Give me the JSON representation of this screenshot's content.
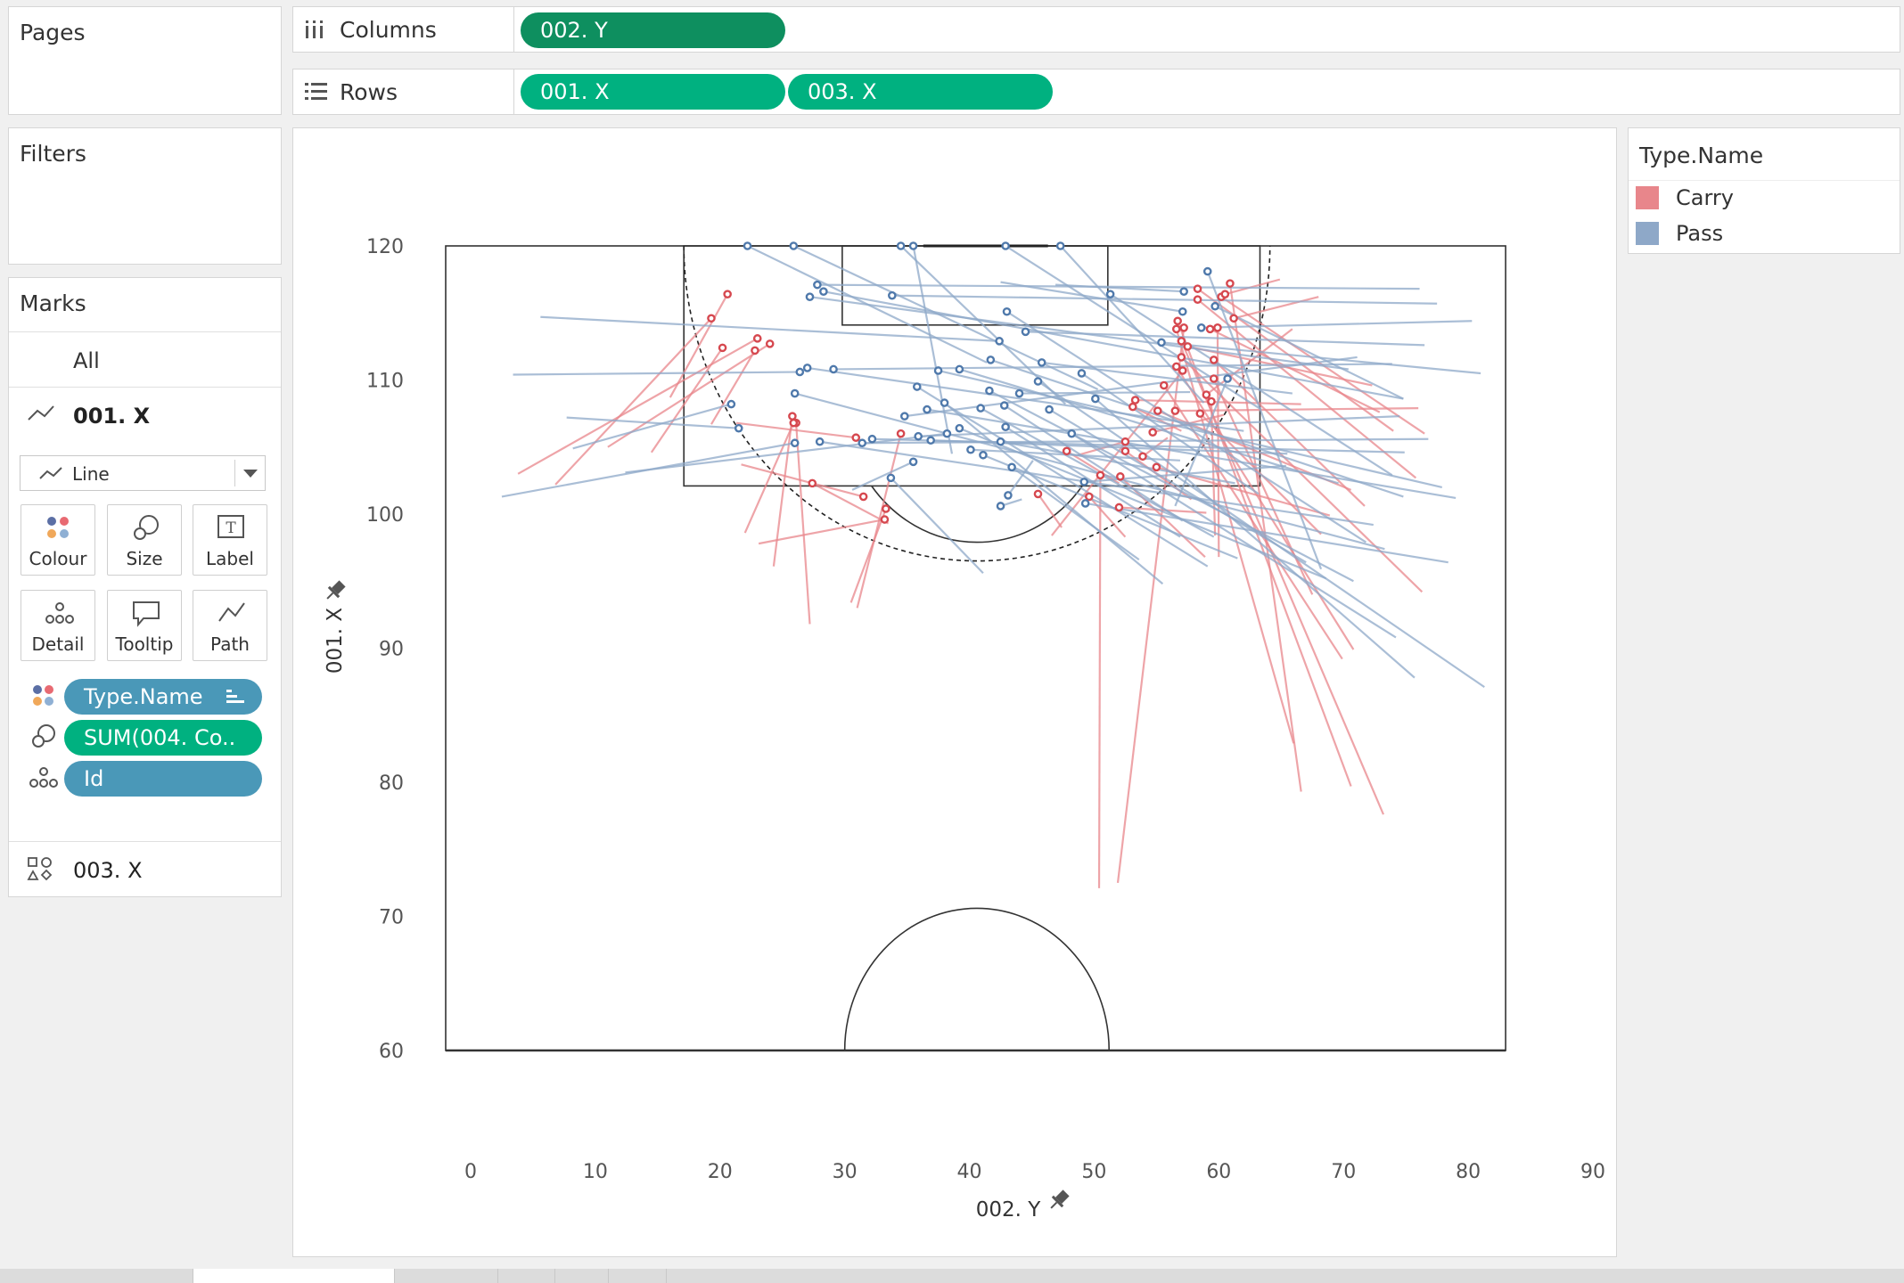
{
  "pages_card": {
    "title": "Pages"
  },
  "filters_card": {
    "title": "Filters"
  },
  "columns_shelf": {
    "label": "Columns",
    "pills": [
      "002. Y"
    ]
  },
  "rows_shelf": {
    "label": "Rows",
    "pills": [
      "001. X",
      "003. X"
    ]
  },
  "marks_card": {
    "title": "Marks",
    "all_label": "All",
    "layer_1": "001. X",
    "mark_type": "Line",
    "buttons": [
      "Colour",
      "Size",
      "Label",
      "Detail",
      "Tooltip",
      "Path"
    ],
    "fields": [
      "Type.Name",
      "SUM(004. Co..",
      "Id"
    ],
    "layer_2": "003. X"
  },
  "legend": {
    "title": "Type.Name",
    "items": [
      {
        "name": "Carry",
        "color": "#e8868b"
      },
      {
        "name": "Pass",
        "color": "#8ea8c8"
      }
    ]
  },
  "colors": {
    "carry_line": "#e8868b",
    "carry_point": "#d6484f",
    "pass_line": "#8ea8c8",
    "pass_point": "#4f79ab",
    "pill_dark": "#0e8f5f",
    "pill_green": "#00b180",
    "pill_blue": "#4a98b8"
  },
  "chart_data": {
    "type": "line",
    "xlabel": "002. Y",
    "ylabel": "001. X",
    "xlim": [
      -2,
      90
    ],
    "ylim": [
      60,
      120
    ],
    "x_ticks": [
      "0",
      "10",
      "20",
      "30",
      "40",
      "50",
      "60",
      "70",
      "80",
      "90"
    ],
    "y_ticks": [
      "60",
      "70",
      "80",
      "90",
      "100",
      "110",
      "120"
    ],
    "grid": false,
    "legend_position": "right",
    "pitch": {
      "half_line_x": 60,
      "goal_line_x": 120,
      "touchlines_y": [
        -2,
        83
      ],
      "penalty_area": {
        "y": [
          17.1,
          63.3
        ],
        "x": [
          102.1,
          120
        ]
      },
      "six_yard_box": {
        "y": [
          29.8,
          51.1
        ],
        "x": [
          114.1,
          120
        ]
      },
      "goal": {
        "y": [
          36.3,
          46.3
        ]
      },
      "center_circle": {
        "cy": 40.6,
        "r": 10.6
      },
      "penalty_spot": {
        "cy": 40.6,
        "cx": 108.5
      },
      "dashed_arc_radius": 23.5
    },
    "series": [
      {
        "name": "Carry",
        "segments": [
          [
            20.6,
            116.4,
            16.0,
            108.7
          ],
          [
            19.3,
            114.6,
            6.8,
            102.2
          ],
          [
            23.0,
            113.1,
            3.8,
            103.0
          ],
          [
            24.0,
            112.7,
            11.0,
            105.0
          ],
          [
            20.2,
            112.4,
            14.5,
            104.6
          ],
          [
            22.8,
            112.2,
            19.3,
            106.7
          ],
          [
            25.8,
            107.3,
            24.3,
            96.1
          ],
          [
            26.1,
            106.8,
            27.2,
            91.8
          ],
          [
            25.9,
            106.8,
            22.0,
            98.6
          ],
          [
            34.5,
            106.0,
            31.0,
            93.0
          ],
          [
            33.3,
            100.4,
            30.5,
            93.4
          ],
          [
            31.5,
            101.3,
            21.7,
            103.7
          ],
          [
            33.2,
            99.6,
            23.1,
            97.8
          ],
          [
            27.4,
            102.3,
            33.5,
            99.3
          ],
          [
            30.9,
            105.7,
            21.3,
            106.8
          ],
          [
            58.3,
            116.8,
            74.0,
            106.2
          ],
          [
            58.3,
            116.0,
            75.8,
            102.7
          ],
          [
            60.9,
            117.2,
            66.6,
            79.3
          ],
          [
            60.2,
            116.2,
            76.5,
            106.0
          ],
          [
            56.7,
            114.4,
            70.6,
            79.7
          ],
          [
            57.0,
            112.9,
            73.2,
            77.6
          ],
          [
            57.2,
            113.9,
            51.9,
            72.5
          ],
          [
            56.6,
            113.8,
            66.0,
            82.9
          ],
          [
            59.3,
            113.8,
            72.9,
            107.6
          ],
          [
            57.0,
            111.7,
            76.3,
            94.2
          ],
          [
            56.6,
            111.0,
            70.8,
            89.9
          ],
          [
            57.1,
            110.7,
            46.6,
            98.4
          ],
          [
            59.6,
            111.5,
            71.7,
            100.6
          ],
          [
            59.6,
            110.1,
            67.5,
            94.0
          ],
          [
            55.6,
            109.6,
            69.9,
            89.2
          ],
          [
            59.4,
            108.4,
            59.7,
            98.4
          ],
          [
            58.5,
            107.5,
            68.2,
            98.5
          ],
          [
            53.1,
            108.0,
            57.0,
            106.2
          ],
          [
            53.3,
            108.5,
            66.6,
            108.2
          ],
          [
            55.1,
            107.7,
            70.6,
            101.8
          ],
          [
            56.5,
            107.7,
            76.0,
            107.9
          ],
          [
            52.5,
            105.4,
            48.7,
            104.4
          ],
          [
            52.5,
            104.7,
            57.8,
            101.1
          ],
          [
            54.7,
            106.1,
            60.4,
            107.4
          ],
          [
            55.0,
            103.5,
            68.9,
            99.9
          ],
          [
            53.9,
            104.3,
            55.9,
            105.7
          ],
          [
            50.5,
            102.9,
            50.4,
            72.1
          ],
          [
            52.1,
            102.8,
            58.9,
            96.8
          ],
          [
            52.0,
            100.5,
            59.0,
            100.1
          ],
          [
            49.6,
            101.3,
            52.5,
            98.3
          ],
          [
            45.5,
            101.5,
            47.4,
            99.0
          ],
          [
            47.8,
            104.7,
            52.0,
            102.3
          ],
          [
            59.0,
            108.9,
            65.9,
            113.8
          ],
          [
            60.5,
            116.4,
            64.9,
            117.5
          ],
          [
            61.2,
            114.6,
            68.0,
            116.2
          ],
          [
            59.9,
            113.9,
            60.0,
            96.8
          ],
          [
            57.5,
            112.5,
            72.3,
            109.6
          ]
        ]
      },
      {
        "name": "Pass",
        "segments": [
          [
            22.2,
            120.0,
            41.4,
            111.3
          ],
          [
            25.9,
            120.0,
            50.3,
            109.3
          ],
          [
            34.5,
            120.0,
            47.7,
            108.2
          ],
          [
            35.5,
            120.0,
            38.6,
            104.5
          ],
          [
            42.9,
            120.0,
            63.4,
            107.8
          ],
          [
            47.3,
            120.0,
            58.8,
            108.3
          ],
          [
            27.8,
            117.1,
            76.1,
            116.8
          ],
          [
            28.3,
            116.6,
            74.8,
            108.6
          ],
          [
            27.2,
            116.2,
            70.4,
            110.8
          ],
          [
            33.8,
            116.3,
            77.5,
            115.7
          ],
          [
            43.0,
            115.1,
            71.8,
            97.9
          ],
          [
            51.3,
            116.4,
            73.9,
            102.9
          ],
          [
            44.5,
            113.6,
            76.5,
            112.6
          ],
          [
            42.4,
            112.9,
            5.6,
            114.7
          ],
          [
            41.7,
            111.5,
            74.8,
            101.3
          ],
          [
            39.2,
            110.8,
            69.6,
            102.3
          ],
          [
            37.5,
            110.7,
            77.9,
            102.0
          ],
          [
            45.8,
            111.3,
            65.9,
            109.0
          ],
          [
            49.0,
            110.5,
            63.2,
            101.5
          ],
          [
            26.4,
            110.6,
            3.4,
            110.4
          ],
          [
            27.0,
            110.9,
            62.0,
            106.2
          ],
          [
            29.1,
            110.8,
            73.9,
            111.2
          ],
          [
            35.8,
            109.5,
            59.1,
            96.1
          ],
          [
            26.0,
            109.0,
            73.3,
            97.4
          ],
          [
            44.0,
            109.0,
            57.7,
            109.1
          ],
          [
            41.6,
            109.2,
            70.8,
            95.0
          ],
          [
            40.9,
            107.9,
            59.6,
            98.3
          ],
          [
            42.8,
            108.1,
            57.1,
            99.5
          ],
          [
            38.0,
            108.3,
            55.5,
            94.8
          ],
          [
            36.6,
            107.8,
            79.0,
            101.2
          ],
          [
            50.1,
            108.6,
            75.7,
            87.8
          ],
          [
            46.4,
            107.8,
            67.0,
            96.4
          ],
          [
            20.9,
            108.2,
            8.2,
            104.9
          ],
          [
            34.8,
            107.3,
            71.1,
            111.7
          ],
          [
            42.9,
            106.5,
            56.9,
            98.3
          ],
          [
            48.2,
            106.0,
            74.2,
            90.8
          ],
          [
            38.2,
            106.0,
            12.4,
            103.1
          ],
          [
            32.2,
            105.6,
            74.9,
            104.6
          ],
          [
            35.9,
            105.8,
            74.5,
            107.3
          ],
          [
            39.2,
            106.4,
            68.6,
            95.2
          ],
          [
            42.5,
            105.4,
            61.3,
            102.3
          ],
          [
            21.5,
            106.4,
            7.7,
            107.2
          ],
          [
            26.0,
            105.3,
            2.5,
            101.3
          ],
          [
            28.0,
            105.4,
            72.4,
            99.2
          ],
          [
            36.9,
            105.5,
            65.5,
            104.5
          ],
          [
            40.1,
            104.8,
            56.9,
            104.0
          ],
          [
            41.1,
            104.4,
            61.5,
            96.7
          ],
          [
            31.4,
            105.3,
            76.8,
            105.6
          ],
          [
            35.5,
            103.9,
            30.6,
            101.8
          ],
          [
            33.7,
            102.7,
            41.1,
            95.6
          ],
          [
            43.4,
            103.5,
            53.6,
            96.6
          ],
          [
            42.5,
            100.6,
            44.2,
            101.1
          ],
          [
            43.1,
            101.4,
            45.1,
            104.0
          ],
          [
            49.2,
            102.4,
            65.4,
            103.6
          ],
          [
            49.3,
            100.8,
            78.4,
            96.4
          ],
          [
            55.4,
            112.8,
            81.0,
            110.5
          ],
          [
            58.6,
            113.9,
            80.3,
            114.4
          ],
          [
            57.1,
            115.1,
            42.5,
            117.3
          ],
          [
            59.7,
            115.5,
            74.8,
            108.6
          ],
          [
            59.1,
            118.1,
            68.2,
            95.9
          ],
          [
            57.2,
            116.6,
            46.9,
            117.1
          ],
          [
            60.7,
            110.1,
            56.5,
            100.6
          ],
          [
            45.5,
            109.9,
            81.3,
            87.1
          ]
        ]
      }
    ]
  }
}
